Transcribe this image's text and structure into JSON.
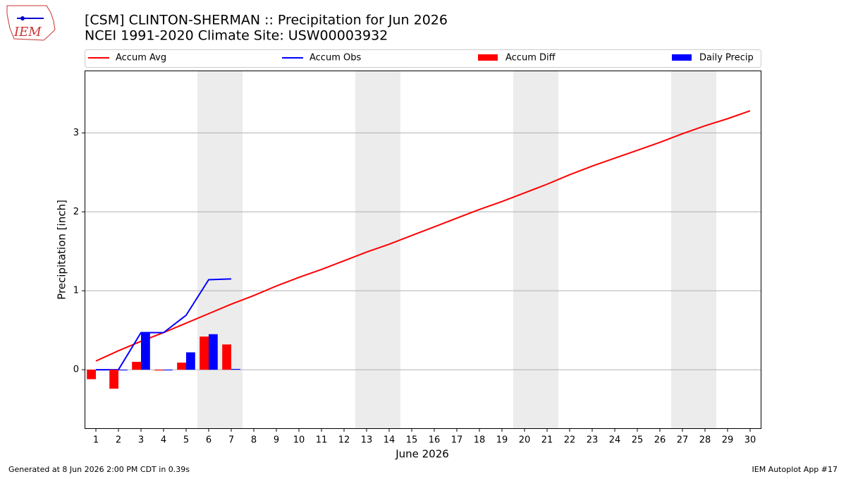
{
  "logo": "IEM",
  "footer": {
    "left": "Generated at 8 Jun 2026 2:00 PM CDT in 0.39s",
    "right": "IEM Autoplot App #17"
  },
  "chart_data": {
    "type": "combo",
    "title": "[CSM] CLINTON-SHERMAN :: Precipitation for Jun 2026",
    "subtitle": "NCEI 1991-2020 Climate Site: USW00003932",
    "x_label": "June 2026",
    "y_label": "Precipitation [inch]",
    "x": [
      1,
      2,
      3,
      4,
      5,
      6,
      7,
      8,
      9,
      10,
      11,
      12,
      13,
      14,
      15,
      16,
      17,
      18,
      19,
      20,
      21,
      22,
      23,
      24,
      25,
      26,
      27,
      28,
      29,
      30
    ],
    "xlim": [
      0.5,
      30.5
    ],
    "xticks": [
      1,
      2,
      3,
      4,
      5,
      6,
      7,
      8,
      9,
      10,
      11,
      12,
      13,
      14,
      15,
      16,
      17,
      18,
      19,
      20,
      21,
      22,
      23,
      24,
      25,
      26,
      27,
      28,
      29,
      30
    ],
    "ylim": [
      -0.75,
      3.79
    ],
    "yticks": [
      0,
      1,
      2,
      3
    ],
    "grid": true,
    "legend": "top",
    "series": [
      {
        "name": "Accum Avg",
        "type": "line",
        "color": "#ff0000",
        "values": [
          0.11,
          0.24,
          0.36,
          0.47,
          0.59,
          0.71,
          0.83,
          0.94,
          1.06,
          1.17,
          1.27,
          1.38,
          1.49,
          1.59,
          1.7,
          1.81,
          1.92,
          2.03,
          2.13,
          2.24,
          2.35,
          2.47,
          2.58,
          2.68,
          2.78,
          2.88,
          2.99,
          3.09,
          3.18,
          3.28
        ]
      },
      {
        "name": "Accum Obs",
        "type": "line",
        "color": "#0000ff",
        "values": [
          0,
          0,
          0.47,
          0.47,
          0.69,
          1.14,
          1.15,
          null,
          null,
          null,
          null,
          null,
          null,
          null,
          null,
          null,
          null,
          null,
          null,
          null,
          null,
          null,
          null,
          null,
          null,
          null,
          null,
          null,
          null,
          null
        ]
      },
      {
        "name": "Accum Diff",
        "type": "bar",
        "color": "#ff0000",
        "values": [
          -0.12,
          -0.24,
          0.1,
          -0.01,
          0.09,
          0.42,
          0.32,
          null,
          null,
          null,
          null,
          null,
          null,
          null,
          null,
          null,
          null,
          null,
          null,
          null,
          null,
          null,
          null,
          null,
          null,
          null,
          null,
          null,
          null,
          null
        ]
      },
      {
        "name": "Daily Precip",
        "type": "bar",
        "color": "#0000ff",
        "values": [
          0,
          0,
          0.47,
          0,
          0.22,
          0.45,
          0.01,
          null,
          null,
          null,
          null,
          null,
          null,
          null,
          null,
          null,
          null,
          null,
          null,
          null,
          null,
          null,
          null,
          null,
          null,
          null,
          null,
          null,
          null,
          null
        ]
      }
    ]
  }
}
